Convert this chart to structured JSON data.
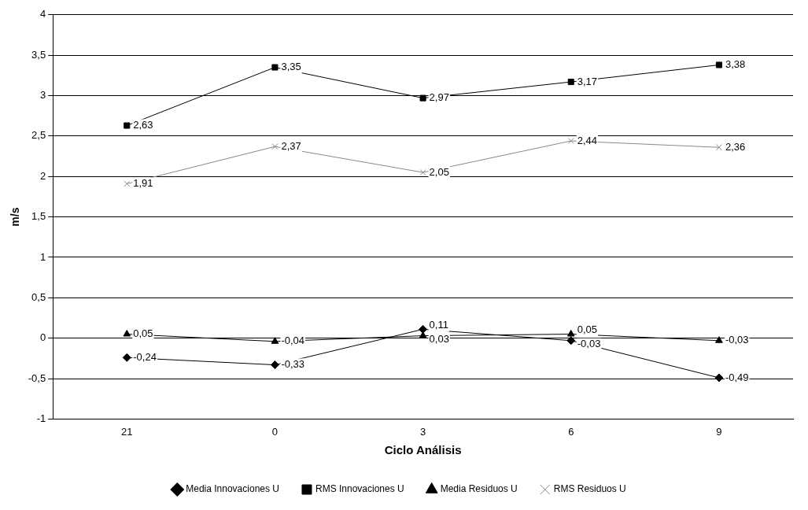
{
  "chart_data": {
    "type": "line",
    "xlabel": "Ciclo Análisis",
    "ylabel": "m/s",
    "categories": [
      "21",
      "0",
      "3",
      "6",
      "9"
    ],
    "series": [
      {
        "name": "Media Innovaciones U",
        "color": "#000000",
        "marker": "diamond",
        "values": [
          -0.24,
          -0.33,
          0.11,
          -0.03,
          -0.49
        ],
        "value_labels": [
          "-0,24",
          "-0,33",
          "0,11",
          "-0,03",
          "-0,49"
        ]
      },
      {
        "name": "RMS Innovaciones U",
        "color": "#000000",
        "marker": "square",
        "values": [
          2.63,
          3.35,
          2.97,
          3.17,
          3.38
        ],
        "value_labels": [
          "2,63",
          "3,35",
          "2,97",
          "3,17",
          "3,38"
        ]
      },
      {
        "name": "Media Residuos U",
        "color": "#000000",
        "marker": "triangle",
        "values": [
          0.05,
          -0.04,
          0.03,
          0.05,
          -0.03
        ],
        "value_labels": [
          "0,05",
          "-0,04",
          "0,03",
          "0,05",
          "-0,03"
        ]
      },
      {
        "name": "RMS Residuos U",
        "color": "#888888",
        "marker": "cross",
        "values": [
          1.91,
          2.37,
          2.05,
          2.44,
          2.36
        ],
        "value_labels": [
          "1,91",
          "2,37",
          "2,05",
          "2,44",
          "2,36"
        ]
      }
    ],
    "ylim": [
      -1,
      4
    ],
    "yticks": [
      -1,
      {
        "value": -0.5,
        "label": "-0,5"
      },
      0,
      {
        "value": 0.5,
        "label": "0,5"
      },
      1,
      {
        "value": 1.5,
        "label": "1,5"
      },
      2,
      {
        "value": 2.5,
        "label": "2,5"
      },
      3,
      {
        "value": 3.5,
        "label": "3,5"
      },
      4
    ],
    "grid": "y",
    "legend": "bottom"
  }
}
